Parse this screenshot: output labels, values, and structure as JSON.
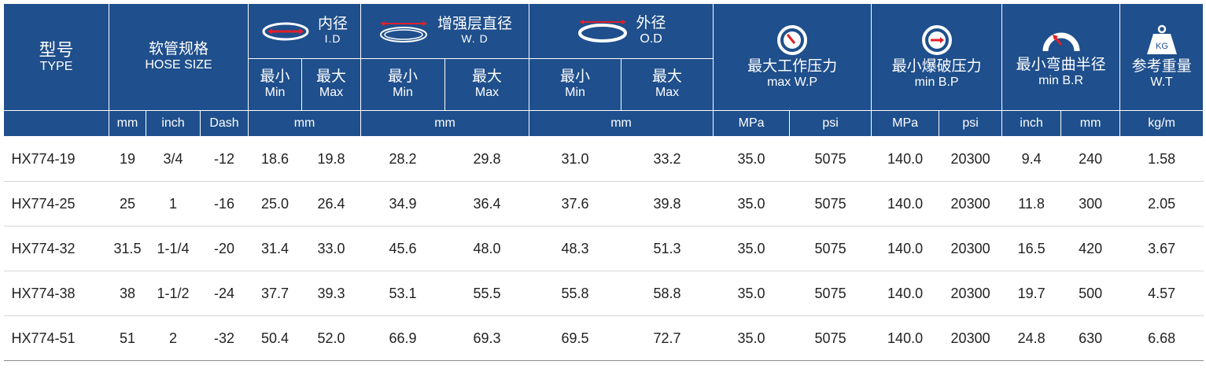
{
  "header": {
    "type": {
      "zh": "型号",
      "en": "TYPE"
    },
    "hose_size": {
      "zh": "软管规格",
      "en": "HOSE SIZE",
      "units": [
        "mm",
        "inch",
        "Dash"
      ]
    },
    "id": {
      "zh": "内径",
      "en": "I.D",
      "icon": "inner-diameter-icon",
      "min_zh": "最小",
      "min_en": "Min",
      "max_zh": "最大",
      "max_en": "Max",
      "unit": "mm"
    },
    "wd": {
      "zh": "增强层直径",
      "en": "W. D",
      "icon": "reinforcement-diameter-icon",
      "min_zh": "最小",
      "min_en": "Min",
      "max_zh": "最大",
      "max_en": "Max",
      "unit": "mm"
    },
    "od": {
      "zh": "外径",
      "en": "O.D",
      "icon": "outer-diameter-icon",
      "min_zh": "最小",
      "min_en": "Min",
      "max_zh": "最大",
      "max_en": "Max",
      "unit": "mm"
    },
    "wp": {
      "zh": "最大工作压力",
      "en": "max W.P",
      "icon": "pressure-gauge-icon",
      "units": [
        "MPa",
        "psi"
      ]
    },
    "bp": {
      "zh": "最小爆破压力",
      "en": "min B.P",
      "icon": "burst-gauge-icon",
      "units": [
        "MPa",
        "psi"
      ]
    },
    "br": {
      "zh": "最小弯曲半径",
      "en": "min B.R",
      "icon": "bend-radius-icon",
      "units": [
        "inch",
        "mm"
      ]
    },
    "wt": {
      "zh": "参考重量",
      "en": "W.T",
      "icon": "weight-icon",
      "icon_label": "KG",
      "unit": "kg/m"
    }
  },
  "colors": {
    "header_bg": "#1f4f8c",
    "icon_red": "#e0202a"
  },
  "rows": [
    {
      "model": "HX774-19",
      "mm": "19",
      "inch": "3/4",
      "dash": "-12",
      "id_min": "18.6",
      "id_max": "19.8",
      "wd_min": "28.2",
      "wd_max": "29.8",
      "od_min": "31.0",
      "od_max": "33.2",
      "wp_mpa": "35.0",
      "wp_psi": "5075",
      "bp_mpa": "140.0",
      "bp_psi": "20300",
      "br_inch": "9.4",
      "br_mm": "240",
      "wt": "1.58"
    },
    {
      "model": "HX774-25",
      "mm": "25",
      "inch": "1",
      "dash": "-16",
      "id_min": "25.0",
      "id_max": "26.4",
      "wd_min": "34.9",
      "wd_max": "36.4",
      "od_min": "37.6",
      "od_max": "39.8",
      "wp_mpa": "35.0",
      "wp_psi": "5075",
      "bp_mpa": "140.0",
      "bp_psi": "20300",
      "br_inch": "11.8",
      "br_mm": "300",
      "wt": "2.05"
    },
    {
      "model": "HX774-32",
      "mm": "31.5",
      "inch": "1-1/4",
      "dash": "-20",
      "id_min": "31.4",
      "id_max": "33.0",
      "wd_min": "45.6",
      "wd_max": "48.0",
      "od_min": "48.3",
      "od_max": "51.3",
      "wp_mpa": "35.0",
      "wp_psi": "5075",
      "bp_mpa": "140.0",
      "bp_psi": "20300",
      "br_inch": "16.5",
      "br_mm": "420",
      "wt": "3.67"
    },
    {
      "model": "HX774-38",
      "mm": "38",
      "inch": "1-1/2",
      "dash": "-24",
      "id_min": "37.7",
      "id_max": "39.3",
      "wd_min": "53.1",
      "wd_max": "55.5",
      "od_min": "55.8",
      "od_max": "58.8",
      "wp_mpa": "35.0",
      "wp_psi": "5075",
      "bp_mpa": "140.0",
      "bp_psi": "20300",
      "br_inch": "19.7",
      "br_mm": "500",
      "wt": "4.57"
    },
    {
      "model": "HX774-51",
      "mm": "51",
      "inch": "2",
      "dash": "-32",
      "id_min": "50.4",
      "id_max": "52.0",
      "wd_min": "66.9",
      "wd_max": "69.3",
      "od_min": "69.5",
      "od_max": "72.7",
      "wp_mpa": "35.0",
      "wp_psi": "5075",
      "bp_mpa": "140.0",
      "bp_psi": "20300",
      "br_inch": "24.8",
      "br_mm": "630",
      "wt": "6.68"
    }
  ]
}
